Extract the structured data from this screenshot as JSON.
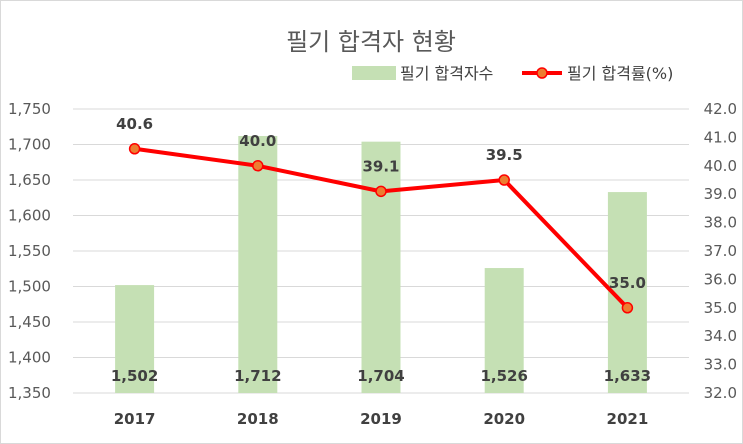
{
  "chart_data": {
    "type": "bar+line",
    "title": "필기 합격자 현황",
    "categories": [
      "2017",
      "2018",
      "2019",
      "2020",
      "2021"
    ],
    "series": [
      {
        "name": "필기 합격자수",
        "type": "bar",
        "axis": "left",
        "values": [
          1502,
          1712,
          1704,
          1526,
          1633
        ],
        "labels": [
          "1,502",
          "1,712",
          "1,704",
          "1,526",
          "1,633"
        ],
        "color": "#c5e0b4"
      },
      {
        "name": "필기 합격률(%)",
        "type": "line",
        "axis": "right",
        "values": [
          40.6,
          40.0,
          39.1,
          39.5,
          35.0
        ],
        "labels": [
          "40.6",
          "40.0",
          "39.1",
          "39.5",
          "35.0"
        ],
        "color": "#ff0000",
        "marker_fill": "#ed7d31"
      }
    ],
    "y_left": {
      "ylim": [
        1350,
        1750
      ],
      "ticks": [
        "1,350",
        "1,400",
        "1,450",
        "1,500",
        "1,550",
        "1,600",
        "1,650",
        "1,700",
        "1,750"
      ]
    },
    "y_right": {
      "ylim": [
        32.0,
        42.0
      ],
      "ticks": [
        "32.0",
        "33.0",
        "34.0",
        "35.0",
        "36.0",
        "37.0",
        "38.0",
        "39.0",
        "40.0",
        "41.0",
        "42.0"
      ]
    },
    "grid": true,
    "legend": "top-right"
  },
  "colors": {
    "gridline": "#d9d9d9",
    "axis_text": "#595959"
  }
}
